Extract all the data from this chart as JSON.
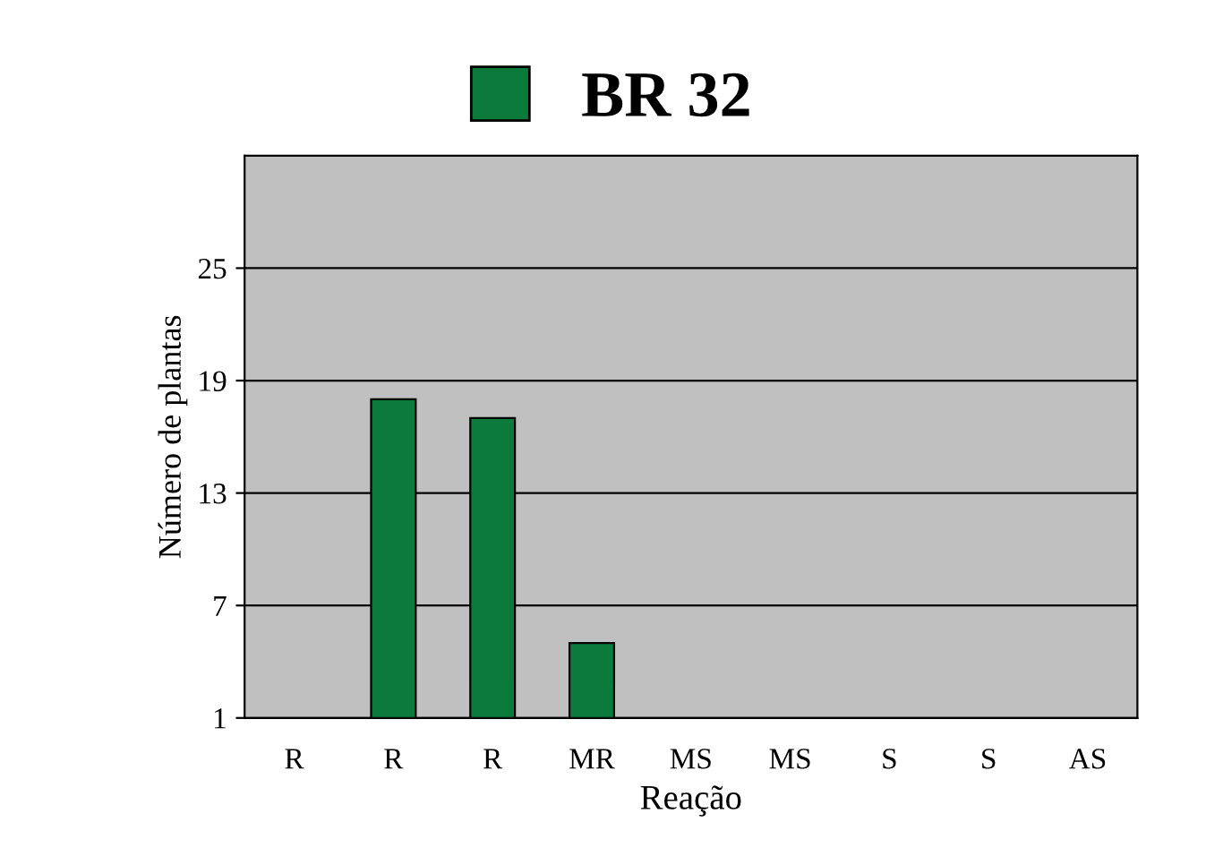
{
  "chart_data": {
    "type": "bar",
    "xlabel": "Reação",
    "ylabel": "Número de plantas",
    "categories": [
      "R",
      "R",
      "R",
      "MR",
      "MS",
      "MS",
      "S",
      "S",
      "AS"
    ],
    "series": [
      {
        "name": "BR 32",
        "color": "#0b7a3b",
        "values": [
          null,
          18,
          17,
          5,
          null,
          null,
          null,
          null,
          null
        ]
      }
    ],
    "ylim": [
      1,
      31
    ],
    "yticks": [
      1,
      7,
      13,
      19,
      25
    ],
    "grid": "y",
    "legend": "top"
  }
}
